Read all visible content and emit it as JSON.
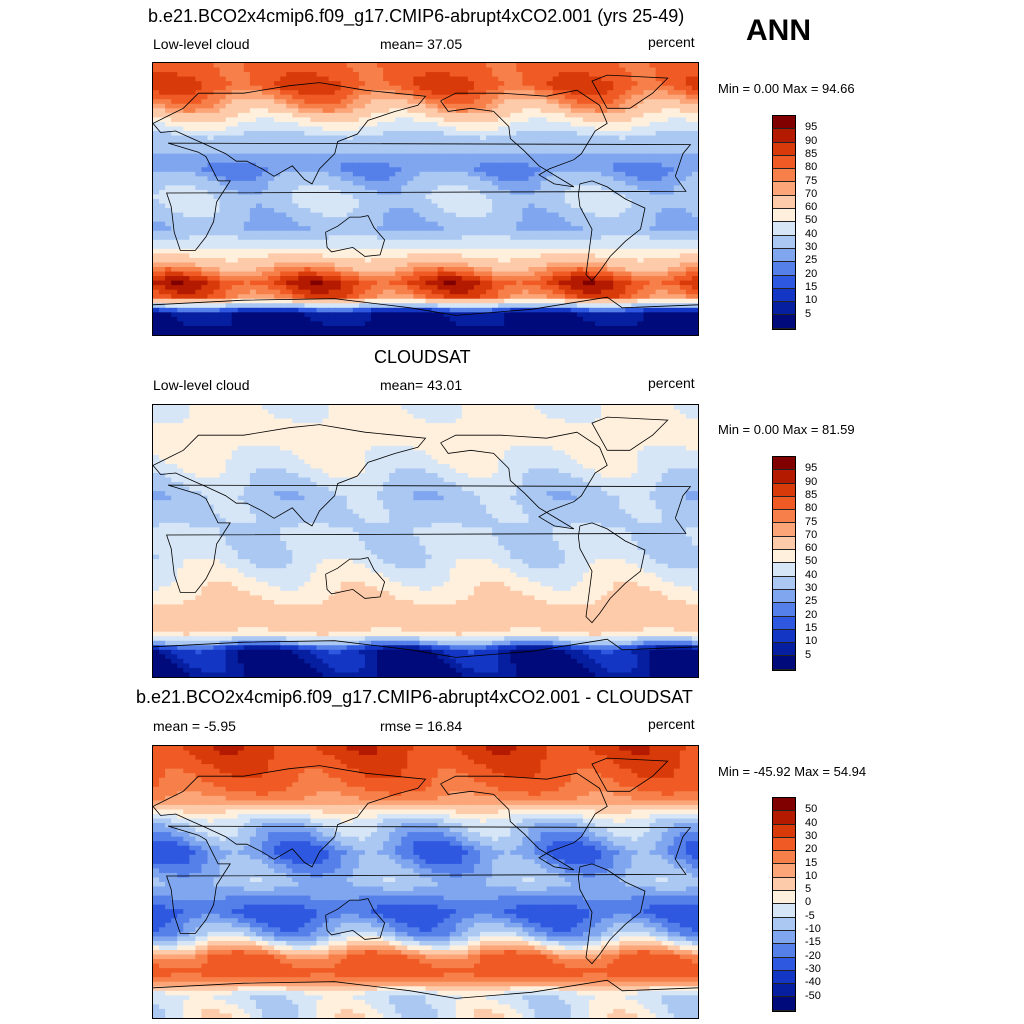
{
  "season": "ANN",
  "panels": [
    {
      "title": "b.e21.BCO2x4cmip6.f09_g17.CMIP6-abrupt4xCO2.001 (yrs 25-49)",
      "left_label": "Low-level cloud",
      "center_label": "mean=  37.05",
      "right_label": "percent",
      "minmax": "Min =   0.00 Max =  94.66",
      "colorbar": {
        "labels": [
          "95",
          "90",
          "85",
          "80",
          "75",
          "70",
          "60",
          "50",
          "40",
          "30",
          "25",
          "20",
          "15",
          "10",
          "5"
        ],
        "colors": [
          "#800000",
          "#b31a00",
          "#d93a0a",
          "#f05a24",
          "#f7804a",
          "#fba579",
          "#fdcbaa",
          "#fff0dd",
          "#d7e6f7",
          "#aac8f2",
          "#7fa6ef",
          "#557fe9",
          "#2e58e0",
          "#1436c4",
          "#061fa0",
          "#000a7a"
        ]
      },
      "map": {
        "field": "cam-low-cloud",
        "extent": {
          "lon": [
            0,
            360
          ],
          "lat": [
            -90,
            90
          ]
        },
        "zonal_profile": [
          {
            "lat": 90,
            "value": 80
          },
          {
            "lat": 75,
            "value": 85
          },
          {
            "lat": 60,
            "value": 70
          },
          {
            "lat": 40,
            "value": 35
          },
          {
            "lat": 20,
            "value": 25
          },
          {
            "lat": 0,
            "value": 40
          },
          {
            "lat": -20,
            "value": 30
          },
          {
            "lat": -35,
            "value": 55
          },
          {
            "lat": -55,
            "value": 88
          },
          {
            "lat": -65,
            "value": 80
          },
          {
            "lat": -75,
            "value": 5
          },
          {
            "lat": -90,
            "value": 2
          }
        ]
      }
    },
    {
      "title": "CLOUDSAT",
      "left_label": "Low-level cloud",
      "center_label": "mean=  43.01",
      "right_label": "percent",
      "minmax": "Min =   0.00 Max =  81.59",
      "colorbar": {
        "labels": [
          "95",
          "90",
          "85",
          "80",
          "75",
          "70",
          "60",
          "50",
          "40",
          "30",
          "25",
          "20",
          "15",
          "10",
          "5"
        ],
        "colors": [
          "#800000",
          "#b31a00",
          "#d93a0a",
          "#f05a24",
          "#f7804a",
          "#fba579",
          "#fdcbaa",
          "#fff0dd",
          "#d7e6f7",
          "#aac8f2",
          "#7fa6ef",
          "#557fe9",
          "#2e58e0",
          "#1436c4",
          "#061fa0",
          "#000a7a"
        ]
      },
      "map": {
        "field": "cloudsat-low-cloud",
        "extent": {
          "lon": [
            0,
            360
          ],
          "lat": [
            -90,
            90
          ]
        },
        "zonal_profile": [
          {
            "lat": 90,
            "value": 50
          },
          {
            "lat": 70,
            "value": 55
          },
          {
            "lat": 50,
            "value": 48
          },
          {
            "lat": 30,
            "value": 35
          },
          {
            "lat": 10,
            "value": 40
          },
          {
            "lat": -10,
            "value": 42
          },
          {
            "lat": -30,
            "value": 55
          },
          {
            "lat": -50,
            "value": 68
          },
          {
            "lat": -60,
            "value": 62
          },
          {
            "lat": -72,
            "value": 8
          },
          {
            "lat": -90,
            "value": 2
          }
        ]
      }
    },
    {
      "title": "b.e21.BCO2x4cmip6.f09_g17.CMIP6-abrupt4xCO2.001 - CLOUDSAT",
      "left_label": "mean =  -5.95",
      "center_label": "rmse =  16.84",
      "right_label": "percent",
      "minmax": "Min = -45.92 Max =  54.94",
      "colorbar": {
        "labels": [
          "50",
          "40",
          "30",
          "20",
          "15",
          "10",
          "5",
          "0",
          "-5",
          "-10",
          "-15",
          "-20",
          "-30",
          "-40",
          "-50"
        ],
        "colors": [
          "#800000",
          "#b31a00",
          "#d93a0a",
          "#f05a24",
          "#f7804a",
          "#fba579",
          "#fdcbaa",
          "#fff0dd",
          "#d7e6f7",
          "#aac8f2",
          "#7fa6ef",
          "#557fe9",
          "#2e58e0",
          "#1436c4",
          "#061fa0",
          "#000a7a"
        ]
      },
      "map": {
        "field": "model-minus-obs",
        "extent": {
          "lon": [
            0,
            360
          ],
          "lat": [
            -90,
            90
          ]
        },
        "zonal_profile": [
          {
            "lat": 90,
            "value": 35
          },
          {
            "lat": 70,
            "value": 25
          },
          {
            "lat": 55,
            "value": 15
          },
          {
            "lat": 40,
            "value": -5
          },
          {
            "lat": 20,
            "value": -18
          },
          {
            "lat": 0,
            "value": -8
          },
          {
            "lat": -20,
            "value": -22
          },
          {
            "lat": -35,
            "value": -10
          },
          {
            "lat": -50,
            "value": 20
          },
          {
            "lat": -60,
            "value": 25
          },
          {
            "lat": -75,
            "value": -3
          },
          {
            "lat": -90,
            "value": 0
          }
        ]
      }
    }
  ]
}
